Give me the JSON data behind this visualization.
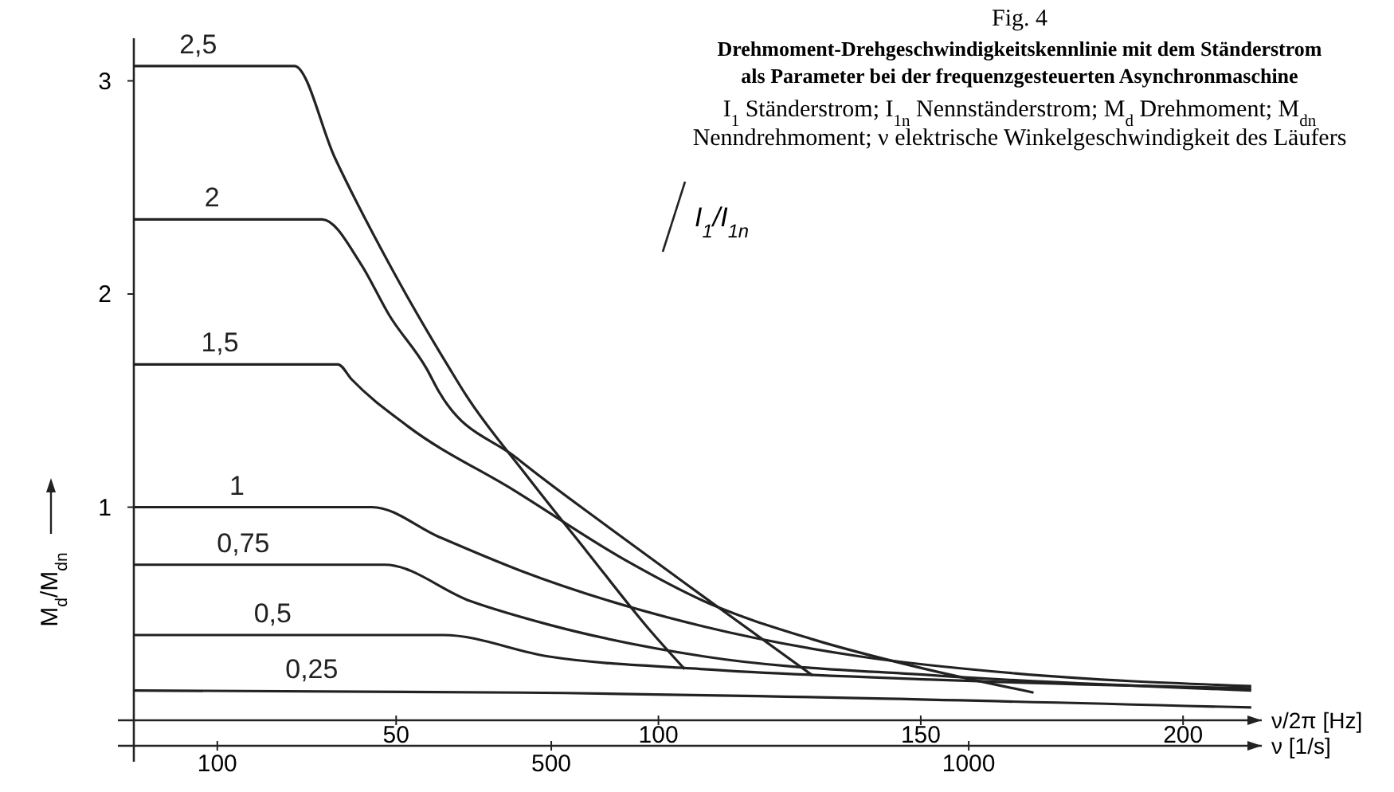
{
  "chart_data": {
    "type": "line",
    "title": "Fig. 4",
    "subtitle": "Drehmoment-Drehgeschwindigkeitskennlinie mit dem Ständerstrom als Parameter bei der frequenzgesteuerten Asynchronmaschine",
    "annotations": [
      "I$_{1}$ Ständerstrom; I$_{1n}$ Nennständerstrom; M$_{d}$ Drehmoment; M$_{dn}$ Nenndrehmoment; ν elektrische Winkelgeschwindigkeit des Läufers"
    ],
    "xlabel": "ν/2π [Hz]",
    "x2label": "ν [1/s]",
    "ylabel": "M$_{d}$/M$_{dn}$",
    "legend_title": "I$_{1}$/I$_{1n}$",
    "xlim": [
      0,
      215
    ],
    "xticks": [
      50,
      100,
      150,
      200
    ],
    "x2lim": [
      0,
      1351
    ],
    "x2ticks": [
      100,
      500,
      1000
    ],
    "ylim": [
      0,
      3.2
    ],
    "yticks": [
      1,
      2,
      3
    ],
    "grid": false,
    "marker": "none",
    "line_style": "solid",
    "series": [
      {
        "name": "2,5",
        "color": "#222222",
        "x": [
          0,
          30.6,
          38.3,
          48.7,
          60.2,
          63.2,
          74.5,
          86.4,
          98.8,
          105
        ],
        "values": [
          3.07,
          3.07,
          2.64,
          2.14,
          1.65,
          1.53,
          1.16,
          0.79,
          0.41,
          0.24
        ]
      },
      {
        "name": "2",
        "color": "#222222",
        "x": [
          0,
          35.9,
          43.3,
          48.7,
          55.8,
          58.2,
          73,
          90.8,
          108.6,
          129.4
        ],
        "values": [
          2.35,
          2.35,
          2.14,
          1.9,
          1.65,
          1.54,
          1.23,
          0.9,
          0.58,
          0.21
        ]
      },
      {
        "name": "1,5",
        "color": "#222222",
        "x": [
          0,
          38.9,
          41.5,
          52.2,
          72.4,
          93.8,
          108.6,
          129.4,
          149.3,
          171.5
        ],
        "values": [
          1.67,
          1.67,
          1.6,
          1.38,
          1.08,
          0.75,
          0.56,
          0.38,
          0.25,
          0.13
        ]
      },
      {
        "name": "1",
        "color": "#222222",
        "x": [
          0,
          45.4,
          58.2,
          73.9,
          108.6,
          138.3,
          168,
          213
        ],
        "values": [
          1,
          1,
          0.86,
          0.7,
          0.44,
          0.3,
          0.22,
          0.16
        ]
      },
      {
        "name": "0,75",
        "color": "#222222",
        "x": [
          0,
          47.8,
          64.1,
          78.9,
          108.6,
          153,
          213
        ],
        "values": [
          0.73,
          0.73,
          0.56,
          0.45,
          0.3,
          0.21,
          0.14
        ]
      },
      {
        "name": "0,5",
        "color": "#222222",
        "x": [
          0,
          59,
          78.9,
          108.6,
          153,
          213
        ],
        "values": [
          0.4,
          0.4,
          0.3,
          0.24,
          0.19,
          0.15
        ]
      },
      {
        "name": "0,25",
        "color": "#222222",
        "x": [
          0,
          73.9,
          213
        ],
        "values": [
          0.14,
          0.13,
          0.06
        ]
      }
    ]
  }
}
